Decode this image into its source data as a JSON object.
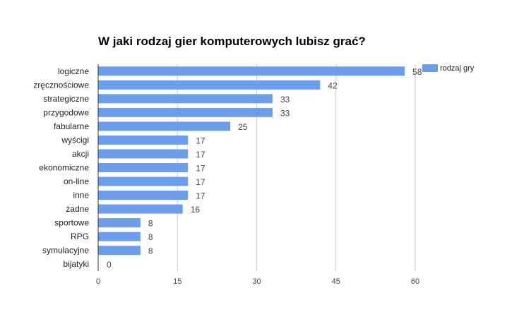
{
  "chart_data": {
    "type": "bar",
    "orientation": "horizontal",
    "title": "W jaki rodzaj gier komputerowych lubisz grać?",
    "categories": [
      "logiczne",
      "zręcznościowe",
      "strategiczne",
      "przygodowe",
      "fabularne",
      "wyścigi",
      "akcji",
      "ekonomiczne",
      "on-line",
      "inne",
      "żadne",
      "sportowe",
      "RPG",
      "symulacyjne",
      "bijatyki"
    ],
    "series": [
      {
        "name": "rodzaj gry",
        "values": [
          58,
          42,
          33,
          33,
          25,
          17,
          17,
          17,
          17,
          17,
          16,
          8,
          8,
          8,
          0
        ]
      }
    ],
    "xlim": [
      0,
      60
    ],
    "xticks": [
      0,
      15,
      30,
      45,
      60
    ],
    "grid": true,
    "legend_position": "top-right",
    "colors": {
      "bar": "#6d9eeb",
      "grid": "#cccccc",
      "axis": "#333333"
    }
  }
}
